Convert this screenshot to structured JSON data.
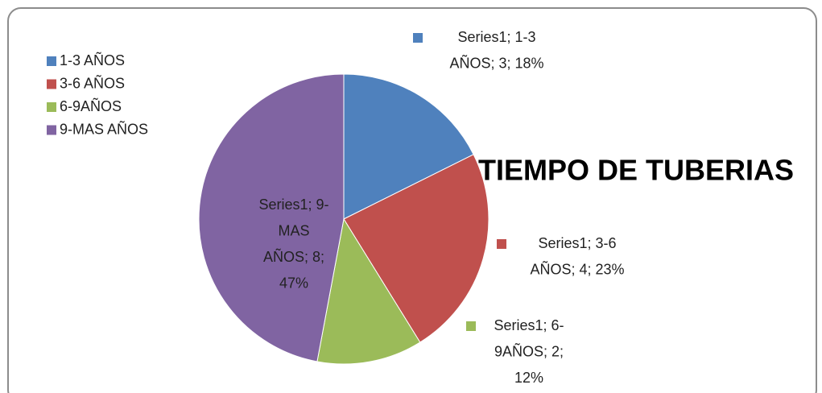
{
  "chart_data": {
    "type": "pie",
    "title": "TIEMPO DE TUBERIAS",
    "categories": [
      "1-3 AÑOS",
      "3-6 AÑOS",
      "6-9AÑOS",
      "9-MAS AÑOS"
    ],
    "values": [
      3,
      4,
      2,
      8
    ],
    "value_labels": [
      [
        "Series1; 1-3",
        "AÑOS; 3; 18%"
      ],
      [
        "Series1; 3-6",
        "AÑOS; 4; 23%"
      ],
      [
        "Series1; 6-",
        "9AÑOS; 2;",
        "12%"
      ],
      [
        "Series1; 9-",
        "MAS",
        "AÑOS; 8;",
        "47%"
      ]
    ],
    "colors": [
      "#4f81bd",
      "#c0504d",
      "#9bbb59",
      "#8064a2"
    ],
    "legend": "top-left"
  }
}
